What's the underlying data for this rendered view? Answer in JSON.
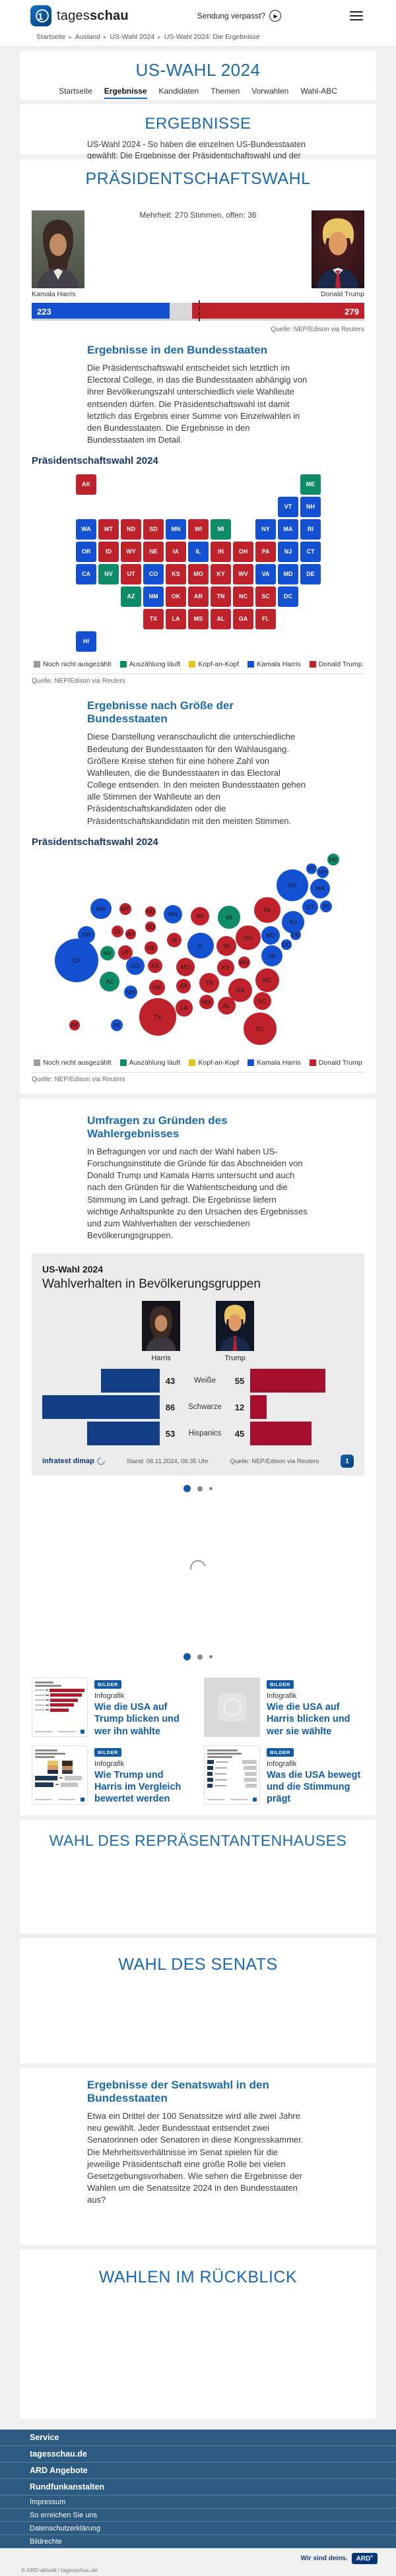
{
  "header": {
    "brand_regular": "tages",
    "brand_bold": "schau",
    "missed_label": "Sendung verpasst?"
  },
  "breadcrumb": {
    "items": [
      "Startseite",
      "Ausland",
      "US-Wahl 2024",
      "US-Wahl 2024: Die Ergebnisse"
    ]
  },
  "hero": {
    "title": "US-WAHL 2024",
    "tabs": [
      {
        "label": "Startseite",
        "active": false
      },
      {
        "label": "Ergebnisse",
        "active": true
      },
      {
        "label": "Kandidaten",
        "active": false
      },
      {
        "label": "Themen",
        "active": false
      },
      {
        "label": "Vorwahlen",
        "active": false
      },
      {
        "label": "Wahl-ABC",
        "active": false
      }
    ]
  },
  "results_intro": {
    "heading": "ERGEBNISSE",
    "text": "US-Wahl 2024 - So haben die einzelnen US-Bundesstaaten gewählt: Die Ergebnisse der Präsidentschaftswahl und der Wahlen zum Senat und Repräsentantenhaus in interaktiven Grafiken."
  },
  "presidential": {
    "heading": "PRÄSIDENTSCHAFTSWAHL",
    "majority_note": "Mehrheit: 270 Stimmen, offen: 36",
    "harris": {
      "name": "Kamala Harris"
    },
    "trump": {
      "name": "Donald Trump"
    },
    "source": "Quelle: NEP/Edison via Reuters",
    "legend": [
      {
        "label": "Noch nicht ausgezählt",
        "key": "pending"
      },
      {
        "label": "Auszählung läuft",
        "key": "counting"
      },
      {
        "label": "Kopf-an-Kopf",
        "key": "tie"
      },
      {
        "label": "Kamala Harris",
        "key": "harris"
      },
      {
        "label": "Donald Trump",
        "key": "trump"
      }
    ],
    "states_section": {
      "heading": "Ergebnisse in den Bundesstaaten",
      "text": "Die Präsidentschaftswahl entscheidet sich letztlich im Electoral College, in das die Bundesstaaten abhängig von ihrer Bevölkerungszahl unterschiedlich viele Wahlleute entsenden dürfen. Die Präsidentschaftswahl ist damit letztlich das Ergebnis einer Summe von Einzelwahlen in den Bundesstaaten. Die Ergebnisse in den Bundesstaaten im Detail.",
      "chart_label": "Präsidentschaftswahl 2024",
      "source": "Quelle: NEP/Edison via Reuters"
    },
    "size_section": {
      "heading": "Ergebnisse nach Größe der Bundesstaaten",
      "text": "Diese Darstellung veranschaulicht die unterschiedliche Bedeutung der Bundesstaaten für den Wahlausgang. Größere Kreise stehen für eine höhere Zahl von Wahlleuten, die die Bundesstaaten in das Electoral College entsenden. In den meisten Bundesstaaten gehen alle Stimmen der Wahlleute an den Präsidentschaftskandidaten oder die Präsidentschaftskandidatin mit den meisten Stimmen.",
      "chart_label": "Präsidentschaftswahl 2024",
      "source": "Quelle: NEP/Edison via Reuters"
    }
  },
  "survey_section": {
    "heading": "Umfragen zu Gründen des Wahlergebnisses",
    "text": "In Befragungen vor und nach der Wahl haben US-Forschungsinstitute die Gründe für das Abschneiden von Donald Trump und Kamala Harris untersucht und auch nach den Gründen für die Wahlentscheidung und die Stimmung im Land gefragt. Die Ergebnisse liefern wichtige Anhaltspunkte zu den Ursachen des Ergebnisses und zum Wahlverhalten der verschiedenen Bevölkerungsgruppen.",
    "card": {
      "kicker": "US-Wahl 2024",
      "title": "Wahlverhalten in Bevölkerungsgruppen",
      "harris_label": "Harris",
      "trump_label": "Trump",
      "footer": {
        "brand": "infratest dimap",
        "stand": "Stand:  06.11.2024, 06:35 Uhr",
        "source": "Quelle: NEP/Edison via Reuters"
      }
    }
  },
  "carousels": [
    {
      "dots": 3,
      "active_index": 0
    },
    {
      "dots": 3,
      "active_index": 0
    }
  ],
  "teasers": [
    {
      "badge": "BILDER",
      "kicker": "Infografik",
      "title": "Wie die USA auf Trump blicken und wer ihn wählte",
      "thumb": "trump-profile"
    },
    {
      "badge": "BILDER",
      "kicker": "Infografik",
      "title": "Wie die USA auf Harris blicken und wer sie wählte",
      "thumb": "placeholder"
    },
    {
      "badge": "BILDER",
      "kicker": "Infografik",
      "title": "Wie Trump und Harris im Vergleich bewertet werden",
      "thumb": "compare"
    },
    {
      "badge": "BILDER",
      "kicker": "Infografik",
      "title": "Was die USA bewegt und die Stimmung prägt",
      "thumb": "mood"
    }
  ],
  "house": {
    "heading": "WAHL DES REPRÄSENTANTENHAUSES"
  },
  "senate": {
    "heading": "WAHL DES SENATS"
  },
  "senate_results": {
    "heading": "Ergebnisse der Senatswahl in den Bundesstaaten",
    "text": "Etwa ein Drittel der 100 Senatssitze wird alle zwei Jahre neu gewählt. Jeder Bundesstaat entsendet zwei Senatorinnen oder Senatoren in diese Kongresskammer. Die Mehrheitsverhältnisse im Senat spielen für die jeweilige Präsidentschaft eine große Rolle bei vielen Gesetzgebungsvorhaben. Wie sehen die Ergebnisse der Wahlen um die Senatssitze 2024 in den Bundesstaaten aus?"
  },
  "review": {
    "heading": "WAHLEN IM RÜCKBLICK"
  },
  "footer": {
    "accordion": [
      "Service",
      "tagesschau.de",
      "ARD Angebote",
      "Rundfunkanstalten"
    ],
    "links": [
      "Impressum",
      "So erreichen Sie uns",
      "Datenschutzerklärung",
      "Bildrechte"
    ],
    "claim": "Wir sind deins.",
    "ard": "ARD",
    "copyright": "© ARD-aktuell / tagesschau.de"
  },
  "colors": {
    "harris": "#1450d2",
    "trump": "#bf222b",
    "counting": "#0e8b67",
    "tie": "#e5c41c",
    "pending": "#9d9d9d",
    "open_segment": "#d8d8d8",
    "demo_harris": "#123e85",
    "demo_trump": "#a50f2d",
    "heading_blue": "#1a6ab0"
  },
  "chart_data": [
    {
      "type": "bar",
      "title": "Präsidentschaftswahl 2024 – Electoral College",
      "categories": [
        "Kamala Harris",
        "offen",
        "Donald Trump"
      ],
      "values": [
        223,
        36,
        279
      ],
      "majority": 270,
      "total": 538,
      "annotation": "Mehrheit: 270 Stimmen, offen: 36"
    },
    {
      "type": "heatmap",
      "title": "Präsidentschaftswahl 2024 – Ergebnisse in den Bundesstaaten",
      "legend": [
        "Noch nicht ausgezählt",
        "Auszählung läuft",
        "Kopf-an-Kopf",
        "Kamala Harris",
        "Donald Trump"
      ],
      "states": [
        {
          "abbr": "AK",
          "ev": 3,
          "result": "trump",
          "tile": [
            0,
            0
          ],
          "bubble": [
            65,
            259
          ]
        },
        {
          "abbr": "ME",
          "ev": 4,
          "result": "counting",
          "tile": [
            10,
            0
          ],
          "bubble": [
            457,
            8
          ]
        },
        {
          "abbr": "VT",
          "ev": 3,
          "result": "harris",
          "tile": [
            9,
            1
          ],
          "bubble": [
            424,
            22
          ]
        },
        {
          "abbr": "NH",
          "ev": 4,
          "result": "harris",
          "tile": [
            10,
            1
          ],
          "bubble": [
            441,
            27
          ]
        },
        {
          "abbr": "WA",
          "ev": 12,
          "result": "harris",
          "tile": [
            0,
            2
          ],
          "bubble": [
            105,
            83
          ]
        },
        {
          "abbr": "MT",
          "ev": 4,
          "result": "trump",
          "tile": [
            1,
            2
          ],
          "bubble": [
            142,
            83
          ]
        },
        {
          "abbr": "ND",
          "ev": 3,
          "result": "trump",
          "tile": [
            2,
            2
          ],
          "bubble": [
            180,
            87
          ]
        },
        {
          "abbr": "SD",
          "ev": 3,
          "result": "trump",
          "tile": [
            3,
            2
          ],
          "bubble": [
            180,
            110
          ]
        },
        {
          "abbr": "MN",
          "ev": 10,
          "result": "harris",
          "tile": [
            4,
            2
          ],
          "bubble": [
            214,
            91
          ]
        },
        {
          "abbr": "WI",
          "ev": 10,
          "result": "trump",
          "tile": [
            5,
            2
          ],
          "bubble": [
            255,
            94
          ]
        },
        {
          "abbr": "MI",
          "ev": 15,
          "result": "counting",
          "tile": [
            6,
            2
          ],
          "bubble": [
            299,
            96
          ]
        },
        {
          "abbr": "NY",
          "ev": 28,
          "result": "harris",
          "tile": [
            8,
            2
          ],
          "bubble": [
            395,
            47
          ]
        },
        {
          "abbr": "MA",
          "ev": 11,
          "result": "harris",
          "tile": [
            9,
            2
          ],
          "bubble": [
            437,
            52
          ]
        },
        {
          "abbr": "RI",
          "ev": 4,
          "result": "harris",
          "tile": [
            10,
            2
          ],
          "bubble": [
            446,
            79
          ]
        },
        {
          "abbr": "OR",
          "ev": 8,
          "result": "harris",
          "tile": [
            0,
            3
          ],
          "bubble": [
            83,
            122
          ]
        },
        {
          "abbr": "ID",
          "ev": 4,
          "result": "trump",
          "tile": [
            1,
            3
          ],
          "bubble": [
            130,
            117
          ]
        },
        {
          "abbr": "WY",
          "ev": 3,
          "result": "trump",
          "tile": [
            2,
            3
          ],
          "bubble": [
            150,
            121
          ]
        },
        {
          "abbr": "NE",
          "ev": 5,
          "result": "trump",
          "tile": [
            3,
            3
          ],
          "bubble": [
            181,
            142
          ]
        },
        {
          "abbr": "IA",
          "ev": 6,
          "result": "trump",
          "tile": [
            4,
            3
          ],
          "bubble": [
            216,
            130
          ]
        },
        {
          "abbr": "IL",
          "ev": 19,
          "result": "harris",
          "tile": [
            5,
            3
          ],
          "bubble": [
            256,
            139
          ]
        },
        {
          "abbr": "IN",
          "ev": 11,
          "result": "trump",
          "tile": [
            6,
            3
          ],
          "bubble": [
            295,
            139
          ]
        },
        {
          "abbr": "OH",
          "ev": 17,
          "result": "trump",
          "tile": [
            7,
            3
          ],
          "bubble": [
            328,
            127
          ]
        },
        {
          "abbr": "PA",
          "ev": 19,
          "result": "trump",
          "tile": [
            8,
            3
          ],
          "bubble": [
            357,
            85
          ]
        },
        {
          "abbr": "NJ",
          "ev": 14,
          "result": "harris",
          "tile": [
            9,
            3
          ],
          "bubble": [
            396,
            103
          ]
        },
        {
          "abbr": "CT",
          "ev": 7,
          "result": "harris",
          "tile": [
            10,
            3
          ],
          "bubble": [
            422,
            80
          ]
        },
        {
          "abbr": "CA",
          "ev": 54,
          "result": "harris",
          "tile": [
            0,
            4
          ],
          "bubble": [
            68,
            161
          ]
        },
        {
          "abbr": "NV",
          "ev": 6,
          "result": "counting",
          "tile": [
            1,
            4
          ],
          "bubble": [
            115,
            150
          ]
        },
        {
          "abbr": "UT",
          "ev": 6,
          "result": "trump",
          "tile": [
            2,
            4
          ],
          "bubble": [
            142,
            149
          ]
        },
        {
          "abbr": "CO",
          "ev": 10,
          "result": "harris",
          "tile": [
            3,
            4
          ],
          "bubble": [
            157,
            169
          ]
        },
        {
          "abbr": "KS",
          "ev": 6,
          "result": "trump",
          "tile": [
            4,
            4
          ],
          "bubble": [
            187,
            169
          ]
        },
        {
          "abbr": "MO",
          "ev": 10,
          "result": "trump",
          "tile": [
            5,
            4
          ],
          "bubble": [
            233,
            171
          ]
        },
        {
          "abbr": "KY",
          "ev": 8,
          "result": "trump",
          "tile": [
            6,
            4
          ],
          "bubble": [
            294,
            172
          ]
        },
        {
          "abbr": "WV",
          "ev": 4,
          "result": "trump",
          "tile": [
            7,
            4
          ],
          "bubble": [
            322,
            164
          ]
        },
        {
          "abbr": "VA",
          "ev": 13,
          "result": "harris",
          "tile": [
            8,
            4
          ],
          "bubble": [
            364,
            154
          ]
        },
        {
          "abbr": "MD",
          "ev": 10,
          "result": "harris",
          "tile": [
            9,
            4
          ],
          "bubble": [
            362,
            123
          ]
        },
        {
          "abbr": "DE",
          "ev": 3,
          "result": "harris",
          "tile": [
            10,
            4
          ],
          "bubble": [
            400,
            122
          ]
        },
        {
          "abbr": "AZ",
          "ev": 11,
          "result": "counting",
          "tile": [
            2,
            5
          ],
          "bubble": [
            118,
            193
          ]
        },
        {
          "abbr": "NM",
          "ev": 5,
          "result": "harris",
          "tile": [
            3,
            5
          ],
          "bubble": [
            150,
            209
          ]
        },
        {
          "abbr": "OK",
          "ev": 7,
          "result": "trump",
          "tile": [
            4,
            5
          ],
          "bubble": [
            190,
            202
          ]
        },
        {
          "abbr": "AR",
          "ev": 6,
          "result": "trump",
          "tile": [
            5,
            5
          ],
          "bubble": [
            230,
            200
          ]
        },
        {
          "abbr": "TN",
          "ev": 11,
          "result": "trump",
          "tile": [
            6,
            5
          ],
          "bubble": [
            269,
            195
          ]
        },
        {
          "abbr": "NC",
          "ev": 16,
          "result": "trump",
          "tile": [
            7,
            5
          ],
          "bubble": [
            357,
            191
          ]
        },
        {
          "abbr": "SC",
          "ev": 9,
          "result": "trump",
          "tile": [
            8,
            5
          ],
          "bubble": [
            349,
            223
          ]
        },
        {
          "abbr": "DC",
          "ev": 3,
          "result": "harris",
          "tile": [
            9,
            5
          ],
          "bubble": [
            386,
            137
          ]
        },
        {
          "abbr": "TX",
          "ev": 40,
          "result": "trump",
          "tile": [
            3,
            6
          ],
          "bubble": [
            191,
            247
          ]
        },
        {
          "abbr": "LA",
          "ev": 8,
          "result": "trump",
          "tile": [
            4,
            6
          ],
          "bubble": [
            231,
            233
          ]
        },
        {
          "abbr": "MS",
          "ev": 6,
          "result": "trump",
          "tile": [
            5,
            6
          ],
          "bubble": [
            265,
            224
          ]
        },
        {
          "abbr": "AL",
          "ev": 9,
          "result": "trump",
          "tile": [
            6,
            6
          ],
          "bubble": [
            295,
            230
          ]
        },
        {
          "abbr": "GA",
          "ev": 16,
          "result": "trump",
          "tile": [
            7,
            6
          ],
          "bubble": [
            316,
            206
          ]
        },
        {
          "abbr": "FL",
          "ev": 30,
          "result": "trump",
          "tile": [
            8,
            6
          ],
          "bubble": [
            346,
            265
          ]
        },
        {
          "abbr": "HI",
          "ev": 4,
          "result": "harris",
          "tile": [
            0,
            7
          ],
          "bubble": [
            129,
            259
          ]
        }
      ]
    },
    {
      "type": "bar",
      "title": "Wahlverhalten in Bevölkerungsgruppen",
      "categories": [
        "Weiße",
        "Schwarze",
        "Hispanics"
      ],
      "series": [
        {
          "name": "Harris",
          "values": [
            43,
            86,
            53
          ]
        },
        {
          "name": "Trump",
          "values": [
            55,
            12,
            45
          ]
        }
      ]
    }
  ]
}
